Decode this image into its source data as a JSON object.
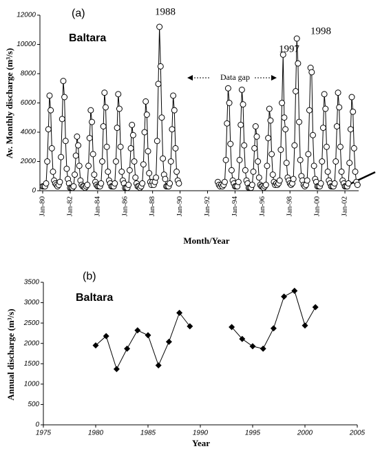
{
  "chart_data": [
    {
      "type": "line",
      "panel": "(a)",
      "title": "Baltara",
      "xlabel": "Month/Year",
      "ylabel": "Av. Monthly discharge (m³/s)",
      "annotations": [
        "1988",
        "1997",
        "1998",
        "Data gap"
      ],
      "color": "#000000",
      "marker": "circle",
      "xlim": [
        "1980-01",
        "2003-01"
      ],
      "xticks": [
        {
          "value": "1980-01",
          "label": "Jan-80"
        },
        {
          "value": "1982-01",
          "label": "Jan-82"
        },
        {
          "value": "1984-01",
          "label": "Jan-84"
        },
        {
          "value": "1986-01",
          "label": "Jan-86"
        },
        {
          "value": "1988-01",
          "label": "Jan-88"
        },
        {
          "value": "1990-01",
          "label": "Jan-90"
        },
        {
          "value": "1992-01",
          "label": "Jan-92"
        },
        {
          "value": "1994-01",
          "label": "Jan-94"
        },
        {
          "value": "1996-01",
          "label": "Jan-96"
        },
        {
          "value": "1998-01",
          "label": "Jan-98"
        },
        {
          "value": "2000-01",
          "label": "Jan-00"
        },
        {
          "value": "2002-01",
          "label": "Jan-02"
        }
      ],
      "ylim": [
        0,
        12000
      ],
      "yticks": [
        0,
        2000,
        4000,
        6000,
        8000,
        10000,
        12000
      ],
      "x": [
        "1980-01",
        "1980-02",
        "1980-03",
        "1980-04",
        "1980-05",
        "1980-06",
        "1980-07",
        "1980-08",
        "1980-09",
        "1980-10",
        "1980-11",
        "1980-12",
        "1981-01",
        "1981-02",
        "1981-03",
        "1981-04",
        "1981-05",
        "1981-06",
        "1981-07",
        "1981-08",
        "1981-09",
        "1981-10",
        "1981-11",
        "1981-12",
        "1982-01",
        "1982-02",
        "1982-03",
        "1982-04",
        "1982-05",
        "1982-06",
        "1982-07",
        "1982-08",
        "1982-09",
        "1982-10",
        "1982-11",
        "1982-12",
        "1983-01",
        "1983-02",
        "1983-03",
        "1983-04",
        "1983-05",
        "1983-06",
        "1983-07",
        "1983-08",
        "1983-09",
        "1983-10",
        "1983-11",
        "1983-12",
        "1984-01",
        "1984-02",
        "1984-03",
        "1984-04",
        "1984-05",
        "1984-06",
        "1984-07",
        "1984-08",
        "1984-09",
        "1984-10",
        "1984-11",
        "1984-12",
        "1985-01",
        "1985-02",
        "1985-03",
        "1985-04",
        "1985-05",
        "1985-06",
        "1985-07",
        "1985-08",
        "1985-09",
        "1985-10",
        "1985-11",
        "1985-12",
        "1986-01",
        "1986-02",
        "1986-03",
        "1986-04",
        "1986-05",
        "1986-06",
        "1986-07",
        "1986-08",
        "1986-09",
        "1986-10",
        "1986-11",
        "1986-12",
        "1987-01",
        "1987-02",
        "1987-03",
        "1987-04",
        "1987-05",
        "1987-06",
        "1987-07",
        "1987-08",
        "1987-09",
        "1987-10",
        "1987-11",
        "1987-12",
        "1988-01",
        "1988-02",
        "1988-03",
        "1988-04",
        "1988-05",
        "1988-06",
        "1988-07",
        "1988-08",
        "1988-09",
        "1988-10",
        "1988-11",
        "1988-12",
        "1989-01",
        "1989-02",
        "1989-03",
        "1989-04",
        "1989-05",
        "1989-06",
        "1989-07",
        "1989-08",
        "1989-09",
        "1989-10",
        "1989-11",
        "1989-12",
        "1991-06",
        "1992-10",
        "1992-11",
        "1992-12",
        "1993-01",
        "1993-02",
        "1993-03",
        "1993-04",
        "1993-05",
        "1993-06",
        "1993-07",
        "1993-08",
        "1993-09",
        "1993-10",
        "1993-11",
        "1993-12",
        "1994-01",
        "1994-02",
        "1994-03",
        "1994-04",
        "1994-05",
        "1994-06",
        "1994-07",
        "1994-08",
        "1994-09",
        "1994-10",
        "1994-11",
        "1994-12",
        "1995-01",
        "1995-02",
        "1995-03",
        "1995-04",
        "1995-05",
        "1995-06",
        "1995-07",
        "1995-08",
        "1995-09",
        "1995-10",
        "1995-11",
        "1995-12",
        "1996-01",
        "1996-02",
        "1996-03",
        "1996-04",
        "1996-05",
        "1996-06",
        "1996-07",
        "1996-08",
        "1996-09",
        "1996-10",
        "1996-11",
        "1996-12",
        "1997-01",
        "1997-02",
        "1997-03",
        "1997-04",
        "1997-05",
        "1997-06",
        "1997-07",
        "1997-08",
        "1997-09",
        "1997-10",
        "1997-11",
        "1997-12",
        "1998-01",
        "1998-02",
        "1998-03",
        "1998-04",
        "1998-05",
        "1998-06",
        "1998-07",
        "1998-08",
        "1998-09",
        "1998-10",
        "1998-11",
        "1998-12",
        "1999-01",
        "1999-02",
        "1999-03",
        "1999-04",
        "1999-05",
        "1999-06",
        "1999-07",
        "1999-08",
        "1999-09",
        "1999-10",
        "1999-11",
        "1999-12",
        "2000-01",
        "2000-02",
        "2000-03",
        "2000-04",
        "2000-05",
        "2000-06",
        "2000-07",
        "2000-08",
        "2000-09",
        "2000-10",
        "2000-11",
        "2000-12",
        "2001-01",
        "2001-02",
        "2001-03",
        "2001-04",
        "2001-05",
        "2001-06",
        "2001-07",
        "2001-08",
        "2001-09",
        "2001-10",
        "2001-11",
        "2001-12",
        "2002-01",
        "2002-02",
        "2002-03",
        "2002-04",
        "2002-05",
        "2002-06",
        "2002-07",
        "2002-08",
        "2002-09",
        "2002-10",
        "2002-11",
        "2002-12"
      ],
      "values": [
        300,
        300,
        300,
        500,
        2000,
        4200,
        6500,
        5500,
        2900,
        1300,
        700,
        500,
        400,
        300,
        400,
        600,
        2300,
        4900,
        7500,
        6400,
        3400,
        1500,
        800,
        500,
        200,
        200,
        200,
        300,
        1100,
        2400,
        3700,
        3100,
        1700,
        700,
        400,
        300,
        300,
        200,
        300,
        400,
        1700,
        3600,
        5500,
        4700,
        2500,
        1100,
        600,
        400,
        300,
        300,
        300,
        500,
        2000,
        4400,
        6700,
        5700,
        3000,
        1300,
        700,
        500,
        300,
        300,
        300,
        500,
        2000,
        4300,
        6600,
        5600,
        3000,
        1300,
        700,
        500,
        200,
        200,
        200,
        400,
        1400,
        2900,
        4500,
        3800,
        2000,
        900,
        500,
        300,
        300,
        200,
        300,
        500,
        1800,
        4000,
        6100,
        5200,
        2700,
        1200,
        600,
        400,
        600,
        400,
        600,
        900,
        3400,
        7300,
        11200,
        8500,
        5000,
        2200,
        1100,
        800,
        300,
        300,
        300,
        500,
        2000,
        4200,
        6500,
        5500,
        2900,
        1300,
        700,
        500,
        null,
        600,
        400,
        300,
        400,
        300,
        400,
        600,
        2100,
        4600,
        7000,
        6000,
        3200,
        1400,
        700,
        500,
        300,
        300,
        300,
        600,
        2100,
        4500,
        6900,
        5900,
        3100,
        1400,
        700,
        500,
        200,
        200,
        200,
        400,
        1300,
        2900,
        4400,
        3700,
        2000,
        900,
        400,
        300,
        300,
        200,
        300,
        400,
        1700,
        3600,
        5600,
        4800,
        2500,
        1100,
        600,
        400,
        500,
        400,
        500,
        700,
        2800,
        6000,
        9300,
        5000,
        4200,
        1900,
        900,
        700,
        500,
        400,
        500,
        800,
        3100,
        6800,
        10400,
        8700,
        4700,
        2100,
        1000,
        700,
        400,
        300,
        400,
        700,
        2500,
        5500,
        8400,
        8100,
        3800,
        1700,
        800,
        600,
        300,
        300,
        300,
        500,
        2000,
        4300,
        6600,
        5600,
        3000,
        1300,
        700,
        500,
        300,
        300,
        300,
        500,
        2000,
        4400,
        6700,
        5700,
        3000,
        1300,
        700,
        500,
        300,
        300,
        300,
        500,
        1900,
        4200,
        6400,
        5400,
        2900,
        1300,
        600,
        400
      ]
    },
    {
      "type": "line",
      "panel": "(b)",
      "title": "Baltara",
      "xlabel": "Year",
      "ylabel": "Annual discharge (m³/s)",
      "color": "#000000",
      "marker": "diamond",
      "xlim": [
        1975,
        2005
      ],
      "xticks": [
        1975,
        1980,
        1985,
        1990,
        1995,
        2000,
        2005
      ],
      "ylim": [
        0,
        3500
      ],
      "yticks": [
        0,
        500,
        1000,
        1500,
        2000,
        2500,
        3000,
        3500
      ],
      "x": [
        1980,
        1981,
        1982,
        1983,
        1984,
        1985,
        1986,
        1987,
        1988,
        1989,
        1991,
        1993,
        1994,
        1995,
        1996,
        1997,
        1998,
        1999,
        2000,
        2001
      ],
      "values": [
        1950,
        2180,
        1370,
        1870,
        2320,
        2200,
        1460,
        2040,
        2750,
        2420,
        null,
        2400,
        2110,
        1930,
        1870,
        2370,
        3150,
        3290,
        2440,
        2890
      ]
    }
  ]
}
